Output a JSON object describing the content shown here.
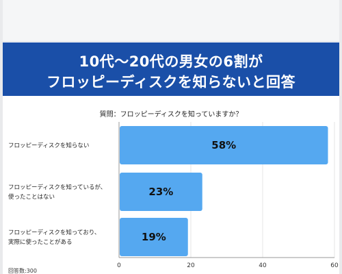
{
  "header": {
    "title_line_1": "10代〜20代の男女の6割が",
    "title_line_2": "フロッピーディスクを知らないと回答"
  },
  "colors": {
    "banner": "#1a4fa8",
    "bar": "#55a8f0",
    "axis": "#999999",
    "grid": "#e4e4e4"
  },
  "footer": {
    "respondents": "回答数:300"
  },
  "chart_data": {
    "type": "bar",
    "orientation": "horizontal",
    "title": "質問：フロッピーディスクを知っていますか？",
    "categories": [
      [
        "フロッピーディスクを知らない"
      ],
      [
        "フロッピーディスクを知っているが、",
        "使ったことはない"
      ],
      [
        "フロッピーディスクを知っており、",
        "実際に使ったことがある"
      ]
    ],
    "values": [
      58,
      23,
      19
    ],
    "value_labels": [
      "58%",
      "23%",
      "19%"
    ],
    "xlim": [
      0,
      60
    ],
    "xticks": [
      0,
      20,
      40,
      60
    ],
    "grid": true,
    "legend": "none"
  }
}
